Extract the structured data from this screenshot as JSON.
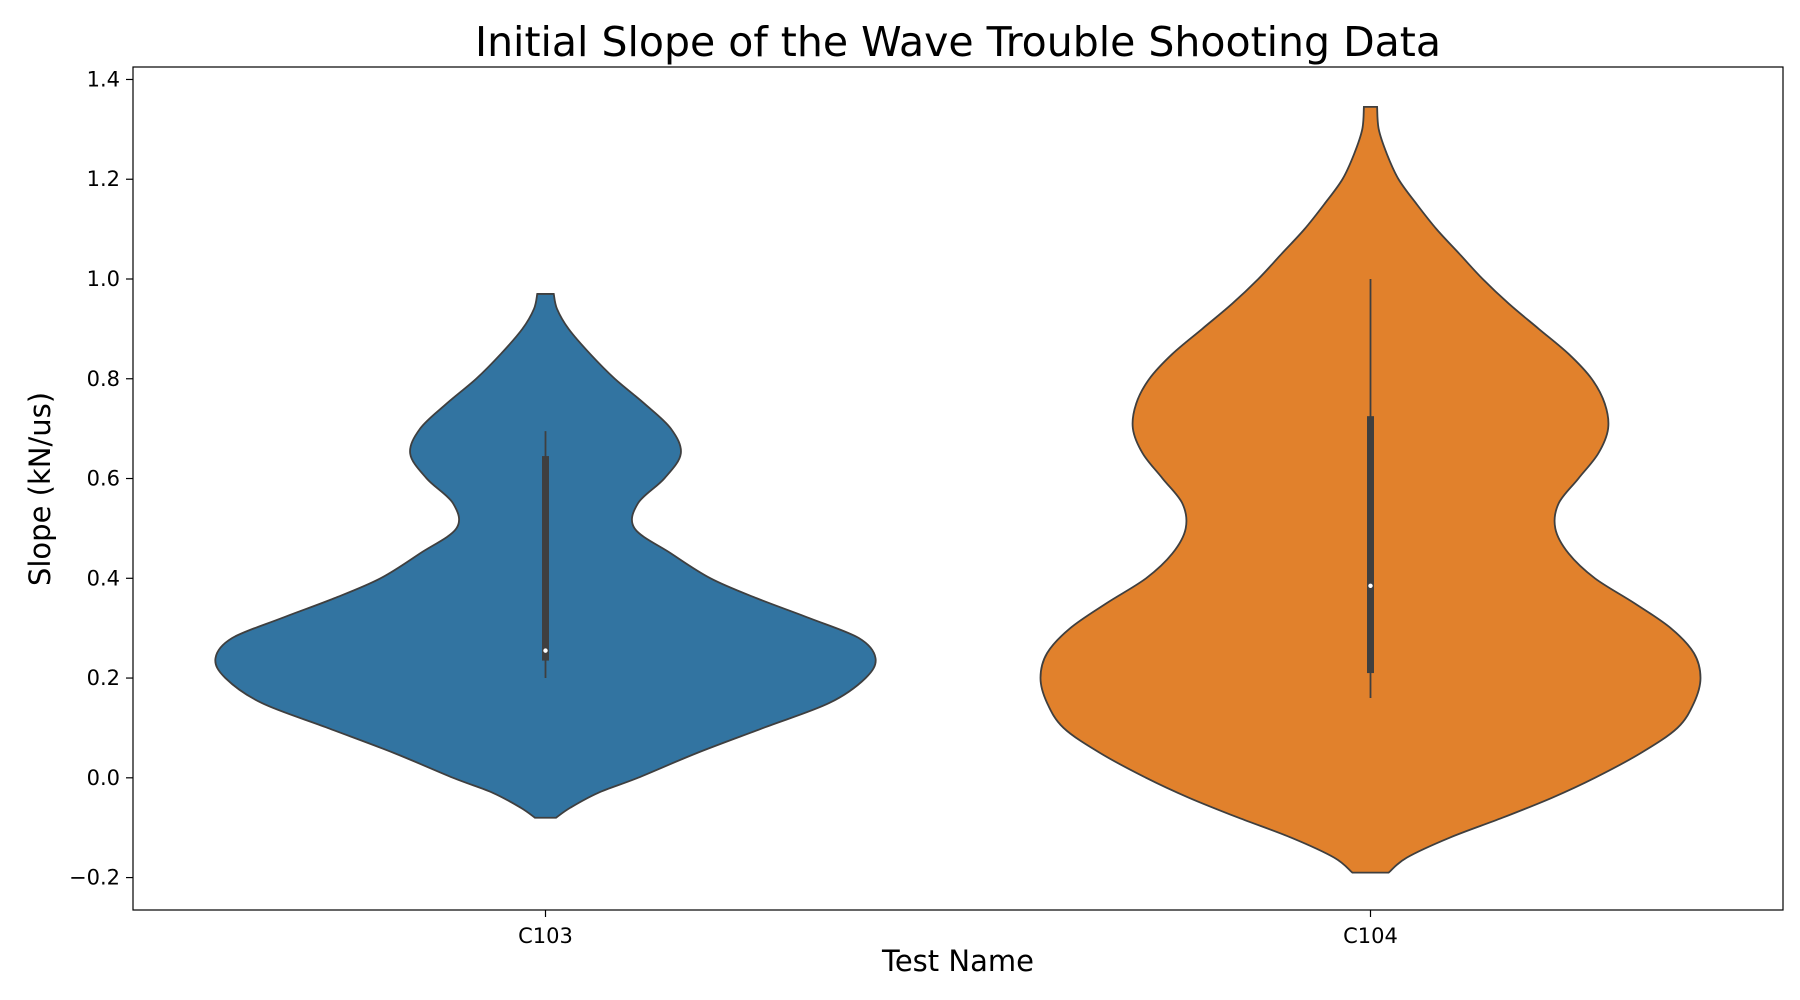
{
  "chart_data": {
    "type": "violin",
    "title": "Initial Slope of the Wave Trouble Shooting Data",
    "xlabel": "Test Name",
    "ylabel": "Slope (kN/us)",
    "ylim": [
      -0.265,
      1.425
    ],
    "yticks": [
      -0.2,
      0.0,
      0.2,
      0.4,
      0.6,
      0.8,
      1.0,
      1.2,
      1.4
    ],
    "ytick_labels": [
      "−0.2",
      "0.0",
      "0.2",
      "0.4",
      "0.6",
      "0.8",
      "1.0",
      "1.2",
      "1.4"
    ],
    "categories": [
      "C103",
      "C104"
    ],
    "grid": false,
    "series": [
      {
        "category": "C103",
        "color": "#3274a1",
        "range": [
          -0.08,
          0.97
        ],
        "median": 0.255,
        "q1": 0.235,
        "q3": 0.645,
        "whisker_low": 0.2,
        "whisker_high": 0.695,
        "density": [
          [
            -0.08,
            0.032
          ],
          [
            -0.06,
            0.075
          ],
          [
            -0.03,
            0.16
          ],
          [
            0.0,
            0.28
          ],
          [
            0.05,
            0.46
          ],
          [
            0.1,
            0.66
          ],
          [
            0.15,
            0.86
          ],
          [
            0.2,
            0.97
          ],
          [
            0.24,
            1.0
          ],
          [
            0.28,
            0.95
          ],
          [
            0.32,
            0.8
          ],
          [
            0.36,
            0.64
          ],
          [
            0.4,
            0.5
          ],
          [
            0.45,
            0.38
          ],
          [
            0.5,
            0.27
          ],
          [
            0.55,
            0.28
          ],
          [
            0.6,
            0.36
          ],
          [
            0.65,
            0.41
          ],
          [
            0.7,
            0.38
          ],
          [
            0.75,
            0.3
          ],
          [
            0.8,
            0.21
          ],
          [
            0.85,
            0.135
          ],
          [
            0.9,
            0.07
          ],
          [
            0.94,
            0.035
          ],
          [
            0.97,
            0.025
          ]
        ]
      },
      {
        "category": "C104",
        "color": "#e1812c",
        "range": [
          -0.19,
          1.345
        ],
        "median": 0.385,
        "q1": 0.21,
        "q3": 0.725,
        "whisker_low": 0.16,
        "whisker_high": 1.0,
        "density": [
          [
            -0.19,
            0.055
          ],
          [
            -0.16,
            0.11
          ],
          [
            -0.12,
            0.24
          ],
          [
            -0.08,
            0.4
          ],
          [
            -0.04,
            0.55
          ],
          [
            0.0,
            0.68
          ],
          [
            0.05,
            0.82
          ],
          [
            0.1,
            0.93
          ],
          [
            0.15,
            0.98
          ],
          [
            0.2,
            1.0
          ],
          [
            0.25,
            0.98
          ],
          [
            0.3,
            0.91
          ],
          [
            0.35,
            0.8
          ],
          [
            0.4,
            0.68
          ],
          [
            0.45,
            0.6
          ],
          [
            0.5,
            0.56
          ],
          [
            0.55,
            0.57
          ],
          [
            0.6,
            0.63
          ],
          [
            0.65,
            0.69
          ],
          [
            0.7,
            0.72
          ],
          [
            0.75,
            0.71
          ],
          [
            0.8,
            0.67
          ],
          [
            0.85,
            0.6
          ],
          [
            0.9,
            0.51
          ],
          [
            0.95,
            0.42
          ],
          [
            1.0,
            0.34
          ],
          [
            1.05,
            0.27
          ],
          [
            1.1,
            0.2
          ],
          [
            1.15,
            0.14
          ],
          [
            1.2,
            0.085
          ],
          [
            1.25,
            0.05
          ],
          [
            1.3,
            0.025
          ],
          [
            1.345,
            0.02
          ]
        ]
      }
    ]
  }
}
